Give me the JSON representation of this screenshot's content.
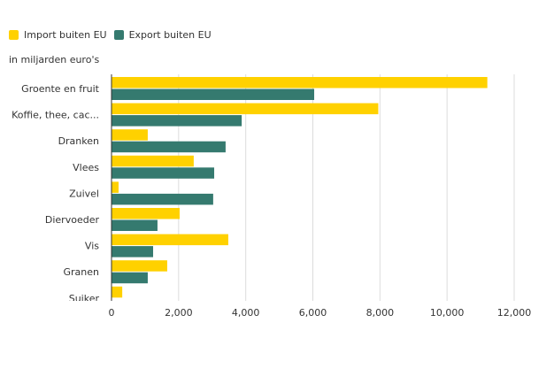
{
  "chart_data": {
    "type": "bar",
    "orientation": "horizontal",
    "subtitle": "in miljarden euro's",
    "categories": [
      "Groente en fruit",
      "Koffie, thee, cac...",
      "Dranken",
      "Vlees",
      "Zuivel",
      "Diervoeder",
      "Vis",
      "Granen",
      "Suiker"
    ],
    "series": [
      {
        "name": "Import buiten EU",
        "color": "#FFD100",
        "values": [
          11200,
          7950,
          1080,
          2450,
          210,
          2030,
          3480,
          1660,
          320
        ]
      },
      {
        "name": "Export buiten EU",
        "color": "#357A6F",
        "values": [
          6040,
          3880,
          3400,
          3060,
          3030,
          1370,
          1240,
          1080,
          null
        ]
      }
    ],
    "xlim": [
      0,
      12000
    ],
    "xticks": [
      0,
      2000,
      4000,
      6000,
      8000,
      10000,
      12000
    ],
    "xtick_labels": [
      "0",
      "2,000",
      "4,000",
      "6,000",
      "8,000",
      "10,000",
      "12,000"
    ],
    "grid": true,
    "legend_position": "top-left"
  }
}
